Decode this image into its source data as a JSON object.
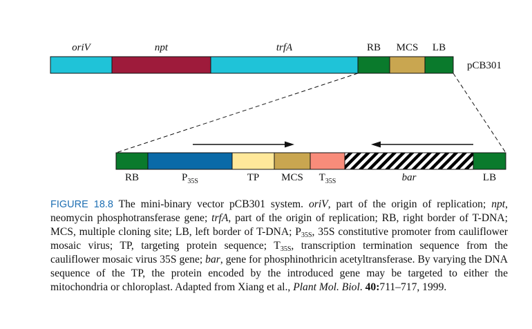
{
  "vector_name": "pCB301",
  "colors": {
    "oriV": "#1fc3d8",
    "npt": "#9e1b3b",
    "trfA": "#1fc3d8",
    "RB": "#0a7a2c",
    "MCS": "#c9a650",
    "LB": "#0a7a2c",
    "P35S": "#0a6aa8",
    "TP": "#ffe89a",
    "T35S": "#f88c7a",
    "bar_hatch": "#000000",
    "caption_label": "#1e6fb3",
    "stroke": "#111111"
  },
  "top_bar": {
    "segments": [
      {
        "id": "oriV",
        "label": "oriV",
        "italic": true
      },
      {
        "id": "npt",
        "label": "npt",
        "italic": true
      },
      {
        "id": "trfA",
        "label": "trfA",
        "italic": true
      },
      {
        "id": "RB",
        "label": "RB",
        "italic": false
      },
      {
        "id": "MCS",
        "label": "MCS",
        "italic": false
      },
      {
        "id": "LB",
        "label": "LB",
        "italic": false
      }
    ]
  },
  "inset_bar": {
    "segments": [
      {
        "id": "RB",
        "label": "RB",
        "sub": "",
        "italic": false
      },
      {
        "id": "P35S",
        "label": "P",
        "sub": "35S",
        "italic": false
      },
      {
        "id": "TP",
        "label": "TP",
        "sub": "",
        "italic": false
      },
      {
        "id": "MCS",
        "label": "MCS",
        "sub": "",
        "italic": false
      },
      {
        "id": "T35S",
        "label": "T",
        "sub": "35S",
        "italic": false
      },
      {
        "id": "bar",
        "label": "bar",
        "sub": "",
        "italic": true
      },
      {
        "id": "LB",
        "label": "LB",
        "sub": "",
        "italic": false
      }
    ],
    "arrows": [
      {
        "id": "forward",
        "direction": "right"
      },
      {
        "id": "reverse",
        "direction": "left"
      }
    ]
  },
  "caption": {
    "figure_label": "FIGURE 18.8",
    "runs": [
      {
        "t": " The mini-binary vector pCB301 system. "
      },
      {
        "t": "oriV",
        "i": true
      },
      {
        "t": ", part of the origin of replication; "
      },
      {
        "t": "npt",
        "i": true
      },
      {
        "t": ", neomycin phosphotransferase gene; "
      },
      {
        "t": "trfA",
        "i": true
      },
      {
        "t": ", part of the origin of replication; RB, right border of T-DNA; MCS, multiple cloning site; LB, left border of T-DNA; P"
      },
      {
        "t": "35S",
        "sub": true
      },
      {
        "t": ", 35S constitutive promoter from cauliflower mosaic virus; TP, targeting protein sequence; T"
      },
      {
        "t": "35S",
        "sub": true
      },
      {
        "t": ", transcription termination sequence from the cauliflower mosaic virus 35S gene; "
      },
      {
        "t": "bar",
        "i": true
      },
      {
        "t": ", gene for phosphinothricin acetyltransferase. By varying the DNA sequence of the TP, the protein encoded by the introduced gene may be targeted to either the mitochondria or chloroplast. Adapted from Xiang et al., "
      },
      {
        "t": "Plant Mol. Biol",
        "i": true
      },
      {
        "t": ". "
      },
      {
        "t": "40:",
        "b": true
      },
      {
        "t": "711–717, 1999."
      }
    ]
  }
}
